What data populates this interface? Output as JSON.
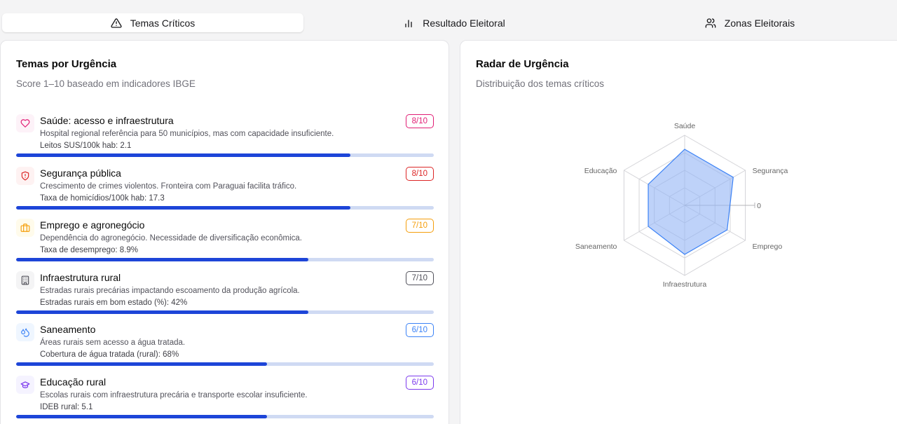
{
  "tabs": [
    {
      "label": "Temas Críticos",
      "icon": "alert-triangle-icon",
      "active": true
    },
    {
      "label": "Resultado Eleitoral",
      "icon": "bar-chart-icon",
      "active": false
    },
    {
      "label": "Zonas Eleitorais",
      "icon": "users-icon",
      "active": false
    }
  ],
  "left_card": {
    "title": "Temas por Urgência",
    "subtitle": "Score 1–10 baseado em indicadores IBGE"
  },
  "items": [
    {
      "name": "Saúde: acesso e infraestrutura",
      "desc": "Hospital regional referência para 50 municípios, mas com capacidade insuficiente.",
      "metric": "Leitos SUS/100k hab: 2.1",
      "score_label": "8/10",
      "score": 8,
      "color": "#e11d74",
      "icon_bg": "#fdf2f8",
      "icon": "heart-icon"
    },
    {
      "name": "Segurança pública",
      "desc": "Crescimento de crimes violentos. Fronteira com Paraguai facilita tráfico.",
      "metric": "Taxa de homicídios/100k hab: 17.3",
      "score_label": "8/10",
      "score": 8,
      "color": "#dc2626",
      "icon_bg": "#fef2f2",
      "icon": "shield-alert-icon"
    },
    {
      "name": "Emprego e agronegócio",
      "desc": "Dependência do agronegócio. Necessidade de diversificação econômica.",
      "metric": "Taxa de desemprego: 8.9%",
      "score_label": "7/10",
      "score": 7,
      "color": "#f59e0b",
      "icon_bg": "#fffbeb",
      "icon": "briefcase-icon"
    },
    {
      "name": "Infraestrutura rural",
      "desc": "Estradas rurais precárias impactando escoamento da produção agrícola.",
      "metric": "Estradas rurais em bom estado (%): 42%",
      "score_label": "7/10",
      "score": 7,
      "color": "#52525b",
      "icon_bg": "#f4f4f5",
      "icon": "building-icon"
    },
    {
      "name": "Saneamento",
      "desc": "Áreas rurais sem acesso a água tratada.",
      "metric": "Cobertura de água tratada (rural): 68%",
      "score_label": "6/10",
      "score": 6,
      "color": "#3b82f6",
      "icon_bg": "#eff6ff",
      "icon": "droplets-icon"
    },
    {
      "name": "Educação rural",
      "desc": "Escolas rurais com infraestrutura precária e transporte escolar insuficiente.",
      "metric": "IDEB rural: 5.1",
      "score_label": "6/10",
      "score": 6,
      "color": "#7c3aed",
      "icon_bg": "#f5f3ff",
      "icon": "graduation-cap-icon"
    }
  ],
  "right_card": {
    "title": "Radar de Urgência",
    "subtitle": "Distribuição dos temas críticos"
  },
  "chart_data": {
    "type": "radar",
    "categories": [
      "Saúde",
      "Segurança",
      "Emprego",
      "Infraestrutura",
      "Saneamento",
      "Educação"
    ],
    "values": [
      8,
      8,
      7,
      7,
      6,
      6
    ],
    "max": 10,
    "tick_label": "0",
    "fill_color": "#93b4f5",
    "stroke_color": "#3b82f6"
  }
}
